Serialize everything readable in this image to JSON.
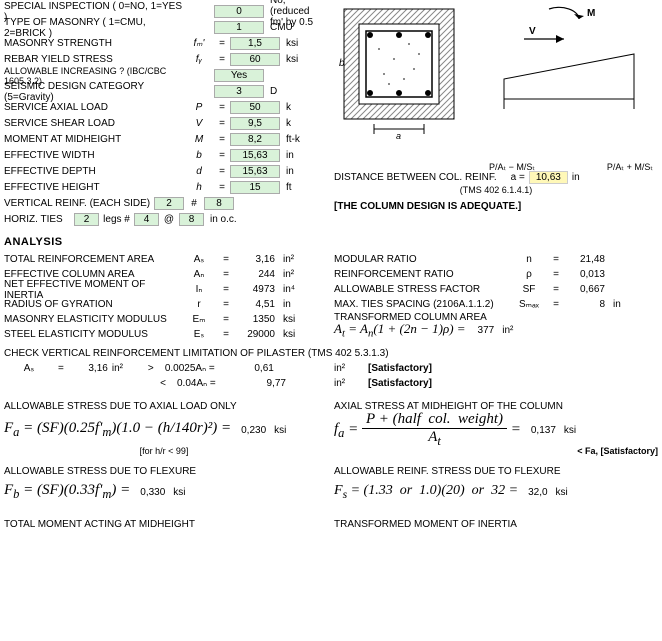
{
  "inputs": {
    "special_inspection": {
      "label": "SPECIAL INSPECTION ( 0=NO, 1=YES )",
      "sym": "",
      "val": "0",
      "unit": "",
      "note": "No, (reduced fm' by 0.5"
    },
    "masonry_type": {
      "label": "TYPE OF MASONRY ( 1=CMU, 2=BRICK )",
      "sym": "",
      "val": "1",
      "unit": "",
      "note": "CMU"
    },
    "masonry_strength": {
      "label": "MASONRY STRENGTH",
      "sym": "fₘ'",
      "val": "1,5",
      "unit": "ksi"
    },
    "rebar_yield": {
      "label": "REBAR YIELD STRESS",
      "sym": "fᵧ",
      "val": "60",
      "unit": "ksi"
    },
    "allowable_inc": {
      "label": "ALLOWABLE INCREASING ? (IBC/CBC 1605.3.2)",
      "sym": "",
      "val": "Yes",
      "unit": ""
    },
    "seismic": {
      "label": "SEISMIC DESIGN CATEGORY (5=Gravity)",
      "sym": "",
      "val": "3",
      "unit": "",
      "note": "D"
    },
    "axial_load": {
      "label": "SERVICE AXIAL LOAD",
      "sym": "P",
      "val": "50",
      "unit": "k"
    },
    "shear_load": {
      "label": "SERVICE SHEAR LOAD",
      "sym": "V",
      "val": "9,5",
      "unit": "k"
    },
    "moment": {
      "label": "MOMENT AT MIDHEIGHT",
      "sym": "M",
      "val": "8,2",
      "unit": "ft-k"
    },
    "eff_width": {
      "label": "EFFECTIVE WIDTH",
      "sym": "b",
      "val": "15,63",
      "unit": "in"
    },
    "eff_depth": {
      "label": "EFFECTIVE DEPTH",
      "sym": "d",
      "val": "15,63",
      "unit": "in"
    },
    "eff_height": {
      "label": "EFFECTIVE HEIGHT",
      "sym": "h",
      "val": "15",
      "unit": "ft"
    },
    "vert_reinf": {
      "label": "VERTICAL REINF. (EACH SIDE)",
      "v1": "2",
      "v2": "#",
      "v3": "8"
    },
    "horiz_ties": {
      "label": "HORIZ. TIES",
      "v0": "2",
      "vlegs": "legs #",
      "v1": "4",
      "v2": "@",
      "v3": "8",
      "unit": "in o.c."
    }
  },
  "diagram": {
    "dist_label": "DISTANCE BETWEEN COL. REINF.",
    "dist_sym": "a  =",
    "dist_val": "10,63",
    "dist_unit": "in",
    "dist_ref": "(TMS 402 6.1.4.1)",
    "adequate": "[THE COLUMN DESIGN IS ADEQUATE.]",
    "left_label": "P/Aₜ − M/Sₜ",
    "right_label": "P/Aₜ + M/Sₜ"
  },
  "analysis": {
    "title": "ANALYSIS",
    "rows_left": [
      {
        "label": "TOTAL REINFORCEMENT AREA",
        "sym": "Aₛ",
        "val": "3,16",
        "unit": "in²"
      },
      {
        "label": "EFFECTIVE COLUMN AREA",
        "sym": "Aₙ",
        "val": "244",
        "unit": "in²"
      },
      {
        "label": "NET EFFECTIVE MOMENT OF INERTIA",
        "sym": "Iₙ",
        "val": "4973",
        "unit": "in⁴"
      },
      {
        "label": "RADIUS OF GYRATION",
        "sym": "r",
        "val": "4,51",
        "unit": "in"
      },
      {
        "label": "MASONRY ELASTICITY MODULUS",
        "sym": "Eₘ",
        "val": "1350",
        "unit": "ksi"
      },
      {
        "label": "STEEL ELASTICITY MODULUS",
        "sym": "Eₛ",
        "val": "29000",
        "unit": "ksi"
      }
    ],
    "rows_right": [
      {
        "label": "MODULAR RATIO",
        "sym": "n",
        "val": "21,48",
        "unit": ""
      },
      {
        "label": "REINFORCEMENT RATIO",
        "sym": "ρ",
        "val": "0,013",
        "unit": ""
      },
      {
        "label": "ALLOWABLE STRESS FACTOR",
        "sym": "SF",
        "val": "0,667",
        "unit": ""
      },
      {
        "label": "MAX. TIES SPACING (2106A.1.1.2)",
        "sym": "Sₘₐₓ",
        "val": "8",
        "unit": "in"
      }
    ],
    "transformed_area_label": "TRANSFORMED COLUMN AREA",
    "transformed_area_formula": "Aₜ = Aₙ(1 + (2n − 1)ρ) =",
    "transformed_area_val": "377",
    "transformed_area_unit": "in²",
    "check_vert": "CHECK VERTICAL REINFORCEMENT LIMITATION OF PILASTER (TMS 402 5.3.1.3)",
    "check_row1": {
      "as": "Aₛ",
      "eq": "=",
      "asval": "3,16",
      "asunit": "in²",
      "gt": ">",
      "lim": "0.0025Aₙ =",
      "limval": "0,61",
      "limunit": "in²",
      "sat": "[Satisfactory]"
    },
    "check_row2": {
      "lt": "<",
      "lim": "0.04Aₙ =",
      "limval": "9,77",
      "limunit": "in²",
      "sat": "[Satisfactory]"
    },
    "fa_label": "ALLOWABLE STRESS DUE TO AXIAL LOAD ONLY",
    "fa_formula": "Fₐ = (SF)(0.25f'ₘ)(1.0 − (h/140r)²) =",
    "fa_val": "0,230",
    "fa_unit": "ksi",
    "fa_note": "[for h/r < 99]",
    "fa_right_label": "AXIAL STRESS AT MIDHEIGHT OF THE COLUMN",
    "fa_right_formula": "fₐ = (P + (half col. weight)) / Aₜ =",
    "fa_right_val": "0,137",
    "fa_right_unit": "ksi",
    "fa_right_sat": "< Fa, [Satisfactory]",
    "fb_label": "ALLOWABLE STRESS DUE TO FLEXURE",
    "fb_formula": "F_b = (SF)(0.33f'ₘ) =",
    "fb_val": "0,330",
    "fb_unit": "ksi",
    "fb_right_label": "ALLOWABLE REINF. STRESS DUE TO FLEXURE",
    "fb_right_formula": "Fₛ = (1.33 or 1.0)(20) or 32 =",
    "fb_right_val": "32,0",
    "fb_right_unit": "ksi",
    "total_moment": "TOTAL MOMENT ACTING AT MIDHEIGHT",
    "transformed_inertia": "TRANSFORMED MOMENT OF INERTIA"
  },
  "colors": {
    "input_bg": "#d9f2d9",
    "output_bg": "#fff8b8"
  }
}
